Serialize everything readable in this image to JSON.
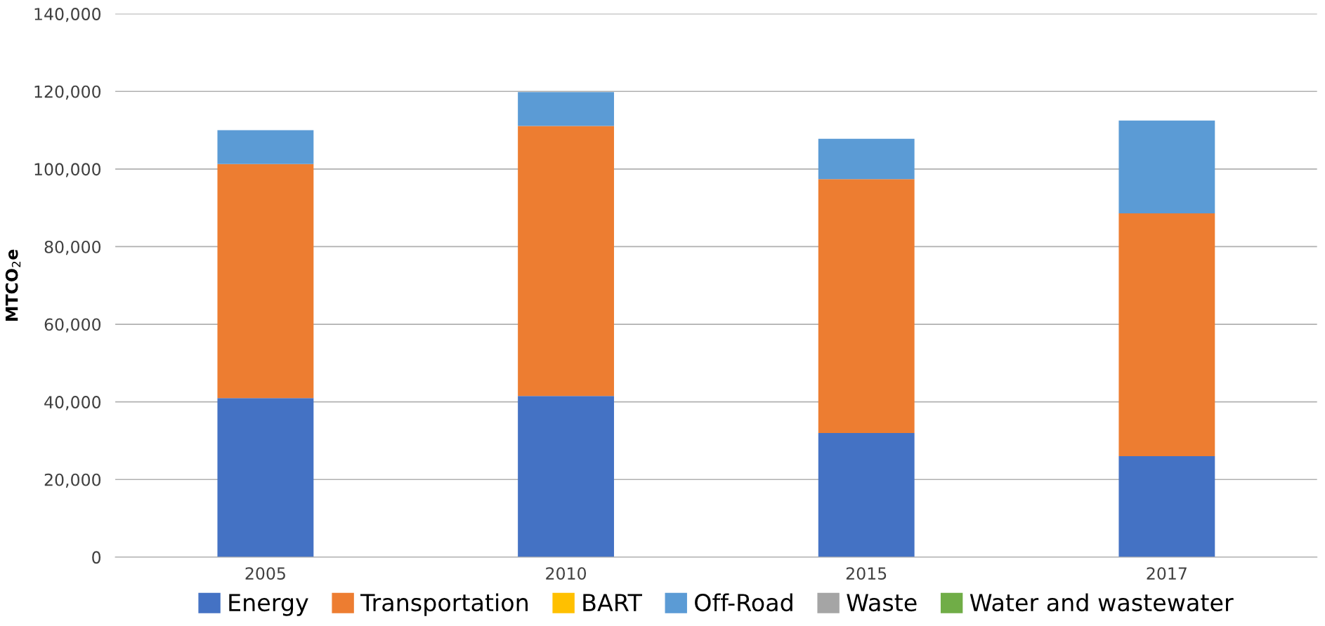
{
  "chart_data": {
    "type": "bar",
    "stacked": true,
    "ylabel": "MTCO$_{2}$e",
    "categories": [
      "2005",
      "2010",
      "2015",
      "2017"
    ],
    "series": [
      {
        "name": "Energy",
        "color": "#4472c4",
        "values": [
          41000,
          41500,
          32000,
          26000
        ]
      },
      {
        "name": "Transportation",
        "color": "#ed7d31",
        "values": [
          60300,
          69600,
          65400,
          62600
        ]
      },
      {
        "name": "BART",
        "color": "#ffc000",
        "values": [
          0,
          0,
          0,
          0
        ]
      },
      {
        "name": "Off-Road",
        "color": "#5b9bd5",
        "values": [
          8700,
          8700,
          10400,
          23900
        ]
      },
      {
        "name": "Waste",
        "color": "#a5a5a5",
        "values": [
          0,
          0,
          0,
          0
        ]
      },
      {
        "name": "Water and wastewater",
        "color": "#70ad47",
        "values": [
          0,
          0,
          0,
          0
        ]
      }
    ],
    "ylim": [
      0,
      140000
    ],
    "yticks": [
      {
        "value": 0,
        "label": "0"
      },
      {
        "value": 20000,
        "label": "20,000"
      },
      {
        "value": 40000,
        "label": "40,000"
      },
      {
        "value": 60000,
        "label": "60,000"
      },
      {
        "value": 80000,
        "label": "80,000"
      },
      {
        "value": 100000,
        "label": "100,000"
      },
      {
        "value": 120000,
        "label": "120,000"
      },
      {
        "value": 140000,
        "label": "140,000"
      }
    ],
    "grid": "y",
    "legend": "bottom"
  }
}
